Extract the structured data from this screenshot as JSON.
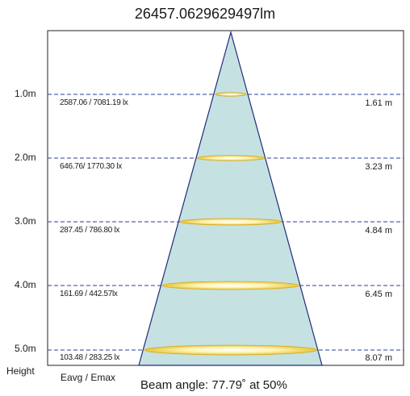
{
  "title": "26457.0629629497lm",
  "levels": [
    {
      "height": "1.0m",
      "lux": "2587.06 / 7081.19 lx",
      "diameter": "1.61 m"
    },
    {
      "height": "2.0m",
      "lux": "646.76/ 1770.30 lx",
      "diameter": "3.23 m"
    },
    {
      "height": "3.0m",
      "lux": "287.45 / 786.80 lx",
      "diameter": "4.84 m"
    },
    {
      "height": "4.0m",
      "lux": "161.69 / 442.57lx",
      "diameter": "6.45 m"
    },
    {
      "height": "5.0m",
      "lux": "103.48 / 283.25 lx",
      "diameter": "8.07 m"
    }
  ],
  "footer": {
    "height_label": "Height",
    "eavg_label": "Eavg / Emax",
    "beam_label": "Beam angle: 77.79˚ at 50%"
  },
  "colors": {
    "cone_fill": "#c5e1e2",
    "cone_stroke": "#1f2d7a",
    "dash": "#2b3d9a",
    "spot": "#f7e27a"
  }
}
